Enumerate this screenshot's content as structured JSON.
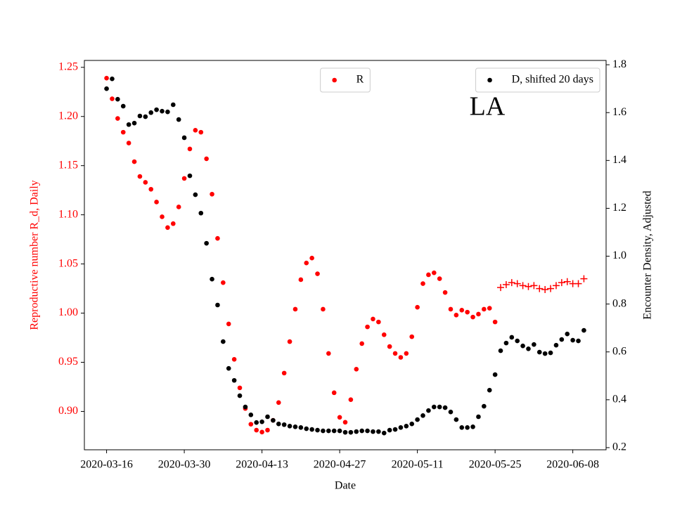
{
  "chart_data": {
    "type": "scatter",
    "xlabel": "Date",
    "ylabel": "Reproductive number R_d, Daily",
    "ylabel_color": "#ff0000",
    "y2label": "Encounter Density, Adjusted",
    "annotation": "LA",
    "legend_loc": "upper center",
    "y2_legend_loc": "upper right",
    "xlim": [
      "2020-03-12",
      "2020-06-14"
    ],
    "xticks": [
      "2020-03-16",
      "2020-03-30",
      "2020-04-13",
      "2020-04-27",
      "2020-05-11",
      "2020-05-25",
      "2020-06-08"
    ],
    "ylim": [
      0.861,
      1.257
    ],
    "yticks": [
      {
        "value": 0.9,
        "label": "0.90"
      },
      0.95,
      {
        "value": 1,
        "label": "1.00"
      },
      1.05,
      {
        "value": 1.1,
        "label": "1.10"
      },
      1.15,
      {
        "value": 1.2,
        "label": "1.20"
      },
      1.25
    ],
    "y2lim": [
      0.191,
      1.818
    ],
    "y2ticks": [
      0.2,
      0.4,
      0.6,
      0.8,
      {
        "value": 1,
        "label": "1.0"
      },
      1.2,
      1.4,
      1.6,
      1.8
    ],
    "x": [
      "2020-03-16",
      "2020-03-17",
      "2020-03-18",
      "2020-03-19",
      "2020-03-20",
      "2020-03-21",
      "2020-03-22",
      "2020-03-23",
      "2020-03-24",
      "2020-03-25",
      "2020-03-26",
      "2020-03-27",
      "2020-03-28",
      "2020-03-29",
      "2020-03-30",
      "2020-03-31",
      "2020-04-01",
      "2020-04-02",
      "2020-04-03",
      "2020-04-04",
      "2020-04-05",
      "2020-04-06",
      "2020-04-07",
      "2020-04-08",
      "2020-04-09",
      "2020-04-10",
      "2020-04-11",
      "2020-04-12",
      "2020-04-13",
      "2020-04-14",
      "2020-04-15",
      "2020-04-16",
      "2020-04-17",
      "2020-04-18",
      "2020-04-19",
      "2020-04-20",
      "2020-04-21",
      "2020-04-22",
      "2020-04-23",
      "2020-04-24",
      "2020-04-25",
      "2020-04-26",
      "2020-04-27",
      "2020-04-28",
      "2020-04-29",
      "2020-04-30",
      "2020-05-01",
      "2020-05-02",
      "2020-05-03",
      "2020-05-04",
      "2020-05-05",
      "2020-05-06",
      "2020-05-07",
      "2020-05-08",
      "2020-05-09",
      "2020-05-10",
      "2020-05-11",
      "2020-05-12",
      "2020-05-13",
      "2020-05-14",
      "2020-05-15",
      "2020-05-16",
      "2020-05-17",
      "2020-05-18",
      "2020-05-19",
      "2020-05-20",
      "2020-05-21",
      "2020-05-22",
      "2020-05-23",
      "2020-05-24",
      "2020-05-25",
      "2020-05-26",
      "2020-05-27",
      "2020-05-28",
      "2020-05-29",
      "2020-05-30",
      "2020-05-31",
      "2020-06-01",
      "2020-06-02",
      "2020-06-03",
      "2020-06-04",
      "2020-06-05",
      "2020-06-06",
      "2020-06-07",
      "2020-06-08",
      "2020-06-09",
      "2020-06-10"
    ],
    "series": [
      {
        "name": "R",
        "color": "#ff0000",
        "marker": "o",
        "values": [
          1.239,
          1.218,
          1.198,
          1.184,
          1.173,
          1.154,
          1.139,
          1.133,
          1.126,
          1.113,
          1.098,
          1.087,
          1.091,
          1.108,
          1.137,
          1.167,
          1.186,
          1.184,
          1.157,
          1.121,
          1.076,
          1.031,
          0.989,
          0.953,
          0.924,
          0.903,
          0.887,
          0.881,
          0.879,
          0.881,
          0.891,
          0.909,
          0.939,
          0.971,
          1.004,
          1.034,
          1.051,
          1.056,
          1.04,
          1.004,
          0.959,
          0.919,
          0.894,
          0.889,
          0.912,
          0.943,
          0.969,
          0.986,
          0.994,
          0.991,
          0.978,
          0.966,
          0.959,
          0.955,
          0.959,
          0.976,
          1.006,
          1.03,
          1.039,
          1.041,
          1.035,
          1.021,
          1.004,
          0.998,
          1.003,
          1.001,
          0.996,
          0.999,
          1.004,
          1.005,
          0.991,
          null,
          null,
          null,
          null,
          null,
          null,
          null,
          null,
          null,
          null,
          null,
          null,
          null,
          null,
          null,
          null
        ]
      },
      {
        "color": "#ff0000",
        "marker": "+",
        "values": [
          null,
          null,
          null,
          null,
          null,
          null,
          null,
          null,
          null,
          null,
          null,
          null,
          null,
          null,
          null,
          null,
          null,
          null,
          null,
          null,
          null,
          null,
          null,
          null,
          null,
          null,
          null,
          null,
          null,
          null,
          null,
          null,
          null,
          null,
          null,
          null,
          null,
          null,
          null,
          null,
          null,
          null,
          null,
          null,
          null,
          null,
          null,
          null,
          null,
          null,
          null,
          null,
          null,
          null,
          null,
          null,
          null,
          null,
          null,
          null,
          null,
          null,
          null,
          null,
          null,
          null,
          null,
          null,
          null,
          null,
          null,
          1.026,
          1.029,
          1.031,
          1.03,
          1.028,
          1.027,
          1.028,
          1.025,
          1.024,
          1.025,
          1.028,
          1.031,
          1.032,
          1.03,
          1.03,
          1.035
        ]
      },
      {
        "name": "D, shifted 20 days",
        "color": "#000000",
        "marker": "o",
        "axis": "y2",
        "values": [
          1.7,
          1.741,
          1.656,
          1.627,
          1.55,
          1.556,
          1.586,
          1.583,
          1.6,
          1.612,
          1.606,
          1.603,
          1.633,
          1.571,
          1.495,
          1.336,
          1.257,
          1.18,
          1.054,
          0.904,
          0.796,
          0.643,
          0.531,
          0.481,
          0.417,
          0.37,
          0.337,
          0.305,
          0.308,
          0.329,
          0.314,
          0.299,
          0.296,
          0.29,
          0.287,
          0.284,
          0.279,
          0.276,
          0.273,
          0.27,
          0.27,
          0.27,
          0.27,
          0.264,
          0.264,
          0.267,
          0.27,
          0.27,
          0.267,
          0.267,
          0.261,
          0.273,
          0.276,
          0.284,
          0.29,
          0.299,
          0.317,
          0.334,
          0.355,
          0.37,
          0.37,
          0.367,
          0.349,
          0.317,
          0.284,
          0.284,
          0.287,
          0.329,
          0.373,
          0.44,
          0.505,
          0.605,
          0.637,
          0.661,
          0.646,
          0.625,
          0.613,
          0.631,
          0.599,
          0.593,
          0.596,
          0.628,
          0.652,
          0.675,
          0.649,
          0.646,
          0.69
        ]
      }
    ]
  }
}
